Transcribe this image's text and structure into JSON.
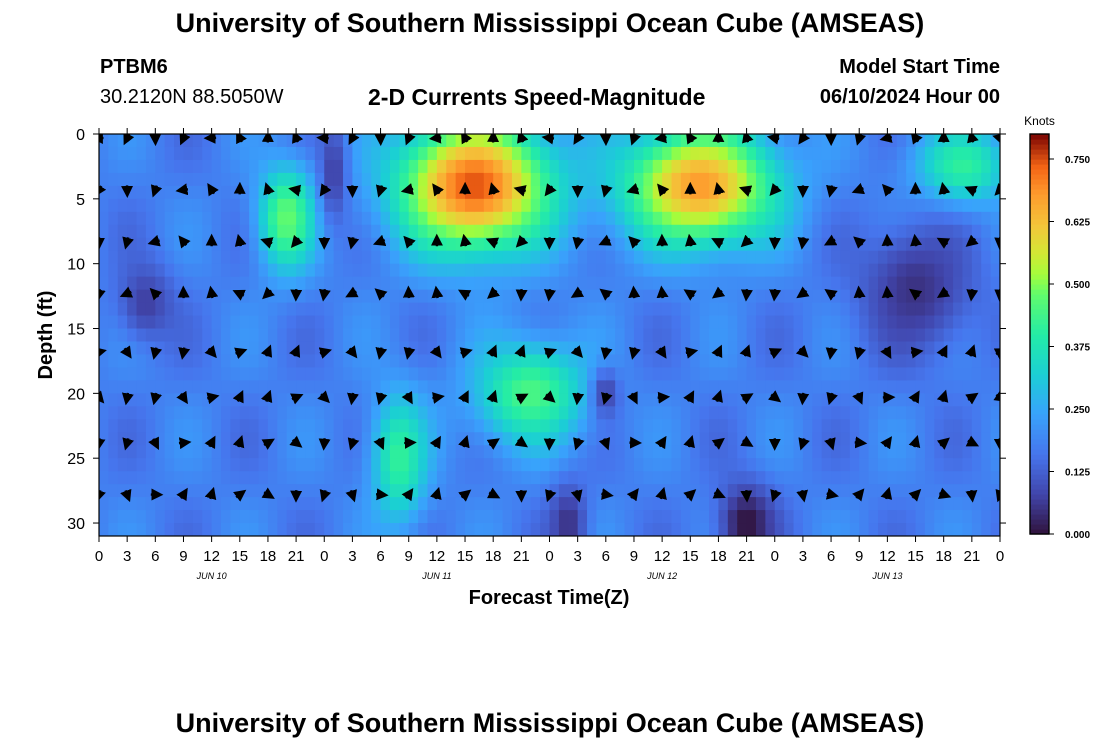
{
  "header": {
    "title": "University of Southern Mississippi Ocean Cube (AMSEAS)",
    "station_id": "PTBM6",
    "station_coords": "30.2120N  88.5050W",
    "subtitle": "2-D Currents Speed-Magnitude",
    "model_label": "Model Start Time",
    "model_value": "06/10/2024 Hour 00"
  },
  "footer": {
    "title": "University of Southern Mississippi Ocean Cube (AMSEAS)"
  },
  "chart_data": {
    "type": "heatmap",
    "title": "2-D Currents Speed-Magnitude",
    "xlabel": "Forecast Time(Z)",
    "ylabel": "Depth (ft)",
    "xlim": [
      0,
      96
    ],
    "ylim": [
      31,
      0
    ],
    "x_tick_labels": [
      "0",
      "3",
      "6",
      "9",
      "12",
      "15",
      "18",
      "21",
      "0",
      "3",
      "6",
      "9",
      "12",
      "15",
      "18",
      "21",
      "0",
      "3",
      "6",
      "9",
      "12",
      "15",
      "18",
      "21",
      "0",
      "3",
      "6",
      "9",
      "12",
      "15",
      "18",
      "21",
      "0"
    ],
    "day_labels": [
      {
        "label": "JUN 10",
        "hour": 12
      },
      {
        "label": "JUN 11",
        "hour": 36
      },
      {
        "label": "JUN 12",
        "hour": 60
      },
      {
        "label": "JUN 13",
        "hour": 84
      }
    ],
    "y_ticks": [
      0,
      5,
      10,
      15,
      20,
      25,
      30
    ],
    "colorbar": {
      "title": "Knots",
      "min": 0.0,
      "max": 0.8,
      "tick_values": [
        0.0,
        0.125,
        0.25,
        0.375,
        0.5,
        0.625,
        0.75
      ],
      "tick_labels": [
        "0.000",
        "0.125",
        "0.250",
        "0.375",
        "0.500",
        "0.625",
        "0.750"
      ]
    },
    "speed_blobs_knots": [
      {
        "hour": 20,
        "depth": 6.5,
        "value": 0.48,
        "hw": 3,
        "hd": 4
      },
      {
        "hour": 40,
        "depth": 4,
        "value": 0.75,
        "hw": 8,
        "hd": 5
      },
      {
        "hour": 64,
        "depth": 4,
        "value": 0.68,
        "hw": 8,
        "hd": 4.5
      },
      {
        "hour": 46,
        "depth": 20,
        "value": 0.45,
        "hw": 6,
        "hd": 4
      },
      {
        "hour": 32,
        "depth": 25,
        "value": 0.42,
        "hw": 3,
        "hd": 5
      },
      {
        "hour": 92,
        "depth": 2.5,
        "value": 0.42,
        "hw": 5,
        "hd": 3
      },
      {
        "hour": 69,
        "depth": 30,
        "value": 0.0,
        "hw": 3,
        "hd": 3
      },
      {
        "hour": 87,
        "depth": 12,
        "value": 0.05,
        "hw": 6,
        "hd": 5
      },
      {
        "hour": 5,
        "depth": 13,
        "value": 0.07,
        "hw": 3,
        "hd": 3
      },
      {
        "hour": 25,
        "depth": 3,
        "value": 0.07,
        "hw": 1.5,
        "hd": 4
      },
      {
        "hour": 50,
        "depth": 30,
        "value": 0.05,
        "hw": 2,
        "hd": 3
      },
      {
        "hour": 54,
        "depth": 20,
        "value": 0.08,
        "hw": 1.5,
        "hd": 2
      }
    ],
    "vector_depths_ft": [
      0,
      4,
      8,
      12,
      16.5,
      20,
      23.5,
      27.5
    ],
    "vector_hours": [
      0,
      3,
      6,
      9,
      12,
      15,
      18,
      21,
      24,
      27,
      30,
      33,
      36,
      39,
      42,
      45,
      48,
      51,
      54,
      57,
      60,
      63,
      66,
      69,
      72,
      75,
      78,
      81,
      84,
      87,
      90,
      93,
      96
    ]
  }
}
